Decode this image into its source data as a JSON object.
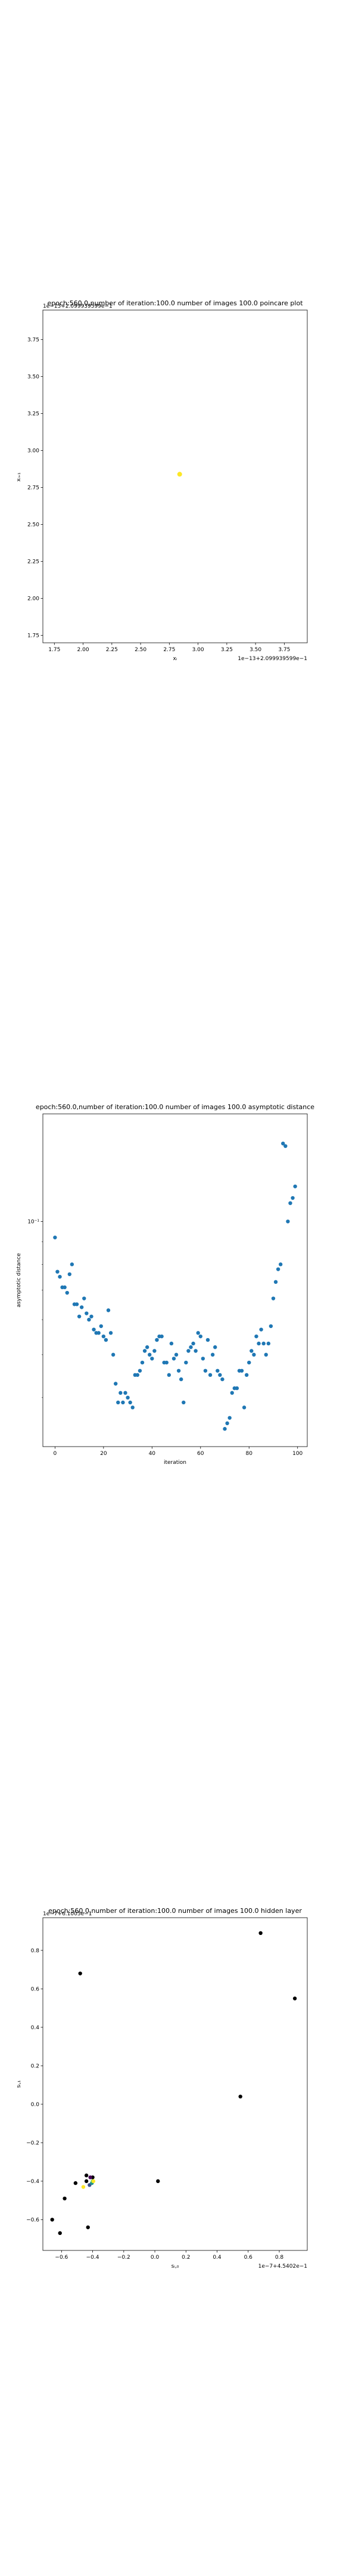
{
  "chart_data": [
    {
      "type": "scatter",
      "title": "epoch:560.0,number of iteration:100.0 number of images 100.0 poincare plot",
      "xlabel": "xᵢ",
      "ylabel": "xᵢ₊₁",
      "x_offset_text": "1e−13+2.099939599e−1",
      "y_offset_text": "1e−13+2.099939599e−1",
      "xlim": [
        1.65,
        3.95
      ],
      "ylim": [
        1.7,
        3.95
      ],
      "x_ticks": [
        1.75,
        2.0,
        2.25,
        2.5,
        2.75,
        3.0,
        3.25,
        3.5,
        3.75
      ],
      "x_tick_labels": [
        "1.75",
        "2.00",
        "2.25",
        "2.50",
        "2.75",
        "3.00",
        "3.25",
        "3.50",
        "3.75"
      ],
      "y_ticks": [
        1.75,
        2.0,
        2.25,
        2.5,
        2.75,
        3.0,
        3.25,
        3.5,
        3.75
      ],
      "y_tick_labels": [
        "1.75",
        "2.00",
        "2.25",
        "2.50",
        "2.75",
        "3.00",
        "3.25",
        "3.50",
        "3.75"
      ],
      "points": [
        {
          "x": 2.84,
          "y": 2.84,
          "color": "#fde725"
        }
      ]
    },
    {
      "type": "scatter",
      "title": "epoch:560.0,number of iteration:100.0  number of images 100.0 asymptotic distance",
      "xlabel": "iteration",
      "ylabel": "asymptotic distance",
      "y_scale": "log",
      "xlim": [
        -5,
        104
      ],
      "y_tick_labels": [
        "10⁻¹"
      ],
      "x_ticks": [
        0,
        20,
        40,
        60,
        80,
        100
      ],
      "x_tick_labels": [
        "0",
        "20",
        "40",
        "60",
        "80",
        "100"
      ],
      "marker_color": "#1f77b4",
      "x": [
        0,
        1,
        2,
        3,
        4,
        5,
        6,
        7,
        8,
        9,
        10,
        11,
        12,
        13,
        14,
        15,
        16,
        17,
        18,
        19,
        20,
        21,
        22,
        23,
        24,
        25,
        26,
        27,
        28,
        29,
        30,
        31,
        32,
        33,
        34,
        35,
        36,
        37,
        38,
        39,
        40,
        41,
        42,
        43,
        44,
        45,
        46,
        47,
        48,
        49,
        50,
        51,
        52,
        53,
        54,
        55,
        56,
        57,
        58,
        59,
        60,
        61,
        62,
        63,
        64,
        65,
        66,
        67,
        68,
        69,
        70,
        71,
        72,
        73,
        74,
        75,
        76,
        77,
        78,
        79,
        80,
        81,
        82,
        83,
        84,
        85,
        86,
        87,
        88,
        89,
        90,
        91,
        92,
        93,
        94,
        95,
        96,
        97,
        98,
        99
      ],
      "y": [
        0.092,
        0.077,
        0.075,
        0.071,
        0.071,
        0.069,
        0.076,
        0.08,
        0.065,
        0.065,
        0.061,
        0.064,
        0.067,
        0.062,
        0.06,
        0.061,
        0.057,
        0.056,
        0.056,
        0.058,
        0.055,
        0.054,
        0.063,
        0.056,
        0.05,
        0.043,
        0.039,
        0.041,
        0.039,
        0.041,
        0.04,
        0.039,
        0.038,
        0.045,
        0.045,
        0.046,
        0.048,
        0.051,
        0.052,
        0.05,
        0.049,
        0.051,
        0.054,
        0.055,
        0.055,
        0.048,
        0.048,
        0.045,
        0.053,
        0.049,
        0.05,
        0.046,
        0.044,
        0.039,
        0.048,
        0.051,
        0.052,
        0.053,
        0.051,
        0.056,
        0.055,
        0.049,
        0.046,
        0.054,
        0.045,
        0.05,
        0.052,
        0.046,
        0.045,
        0.044,
        0.034,
        0.035,
        0.036,
        0.041,
        0.042,
        0.042,
        0.046,
        0.046,
        0.038,
        0.045,
        0.048,
        0.051,
        0.05,
        0.055,
        0.053,
        0.057,
        0.053,
        0.05,
        0.053,
        0.058,
        0.067,
        0.073,
        0.078,
        0.08,
        0.15,
        0.148,
        0.1,
        0.11,
        0.113,
        0.12
      ]
    },
    {
      "type": "scatter",
      "title": "epoch:560.0,number of iteration:100.0  number of images 100.0 hidden layer",
      "xlabel": "sᵢ,₀",
      "ylabel": "sᵢ,₁",
      "x_offset_text": "1e−7+4.5402e−1",
      "y_offset_text": "1e−7+6.1005e−1",
      "xlim": [
        -0.72,
        0.98
      ],
      "ylim": [
        -0.76,
        0.97
      ],
      "x_ticks": [
        -0.6,
        -0.4,
        -0.2,
        0.0,
        0.2,
        0.4,
        0.6,
        0.8
      ],
      "x_tick_labels": [
        "−0.6",
        "−0.4",
        "−0.2",
        "0.0",
        "0.2",
        "0.4",
        "0.6",
        "0.8"
      ],
      "y_ticks": [
        -0.6,
        -0.4,
        -0.2,
        0.0,
        0.2,
        0.4,
        0.6,
        0.8
      ],
      "y_tick_labels": [
        "−0.6",
        "−0.4",
        "−0.2",
        "0.0",
        "0.2",
        "0.4",
        "0.6",
        "0.8"
      ],
      "points": [
        {
          "x": 0.68,
          "y": 0.89,
          "color": "#000000"
        },
        {
          "x": 0.9,
          "y": 0.55,
          "color": "#000000"
        },
        {
          "x": -0.48,
          "y": 0.68,
          "color": "#000000"
        },
        {
          "x": 0.55,
          "y": 0.04,
          "color": "#000000"
        },
        {
          "x": -0.66,
          "y": -0.6,
          "color": "#000000"
        },
        {
          "x": -0.61,
          "y": -0.67,
          "color": "#000000"
        },
        {
          "x": -0.58,
          "y": -0.49,
          "color": "#000000"
        },
        {
          "x": -0.51,
          "y": -0.41,
          "color": "#000000"
        },
        {
          "x": -0.43,
          "y": -0.64,
          "color": "#000000"
        },
        {
          "x": -0.44,
          "y": -0.4,
          "color": "#000000"
        },
        {
          "x": -0.44,
          "y": -0.37,
          "color": "#000000"
        },
        {
          "x": -0.4,
          "y": -0.38,
          "color": "#000000"
        },
        {
          "x": 0.02,
          "y": -0.4,
          "color": "#000000"
        },
        {
          "x": -0.42,
          "y": -0.42,
          "color": "#3b528b"
        },
        {
          "x": -0.405,
          "y": -0.41,
          "color": "#21918c"
        },
        {
          "x": -0.4,
          "y": -0.4,
          "color": "#5ec962"
        },
        {
          "x": -0.395,
          "y": -0.4,
          "color": "#fde725"
        },
        {
          "x": -0.46,
          "y": -0.43,
          "color": "#fde725"
        },
        {
          "x": -0.415,
          "y": -0.38,
          "color": "#440154"
        }
      ]
    }
  ]
}
